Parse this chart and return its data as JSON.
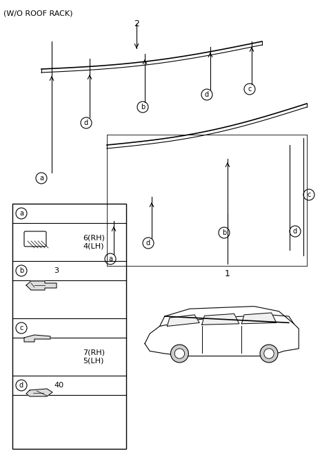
{
  "title": "(W/O ROOF RACK)",
  "bg_color": "#ffffff",
  "line_color": "#000000",
  "fig_width": 4.8,
  "fig_height": 6.56,
  "dpi": 100,
  "label_a": "a",
  "label_b": "b",
  "label_c": "c",
  "label_d": "d",
  "item_1_num": "1",
  "item_2_num": "2",
  "part_a_num": "6(RH)\n4(LH)",
  "part_b_num": "3",
  "part_c_num": "7(RH)\n5(LH)",
  "part_d_num": "40"
}
